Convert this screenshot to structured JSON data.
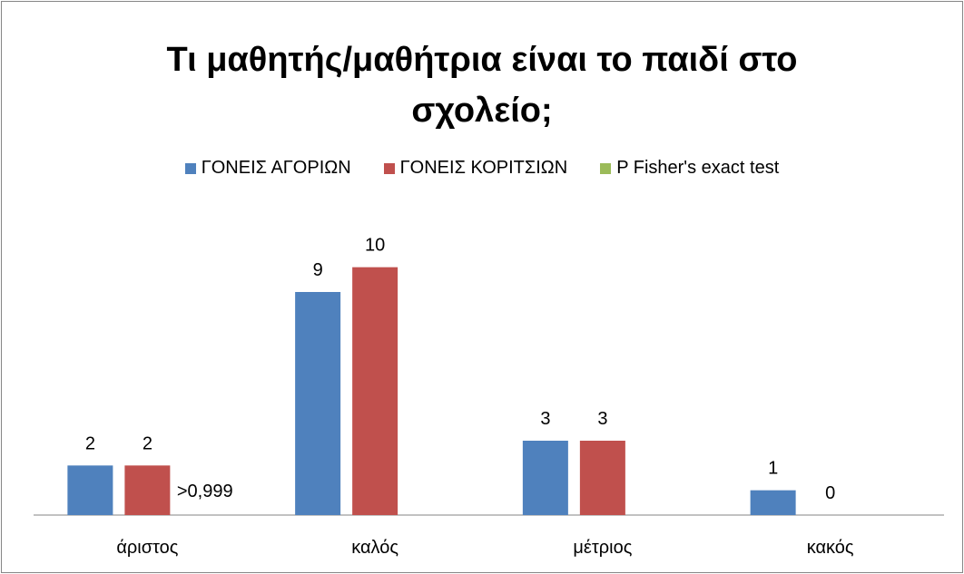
{
  "chart_data": {
    "type": "bar",
    "title": "Τι μαθητής/μαθήτρια είναι το παιδί στο σχολείο;",
    "categories": [
      "άριστος",
      "καλός",
      "μέτριος",
      "κακός"
    ],
    "series": [
      {
        "name": "ΓΟΝΕΙΣ ΑΓΟΡΙΩΝ",
        "color": "#4f81bd",
        "values": [
          2,
          9,
          3,
          1
        ]
      },
      {
        "name": "ΓΟΝΕΙΣ ΚΟΡΙΤΣΙΩΝ",
        "color": "#c0504d",
        "values": [
          2,
          10,
          3,
          0
        ]
      },
      {
        "name": "P Fisher's exact test",
        "color": "#9bbb59",
        "values": [
          null,
          null,
          null,
          null
        ]
      }
    ],
    "annotation": ">0,999",
    "ylim": [
      0,
      12
    ],
    "legend": "top"
  }
}
